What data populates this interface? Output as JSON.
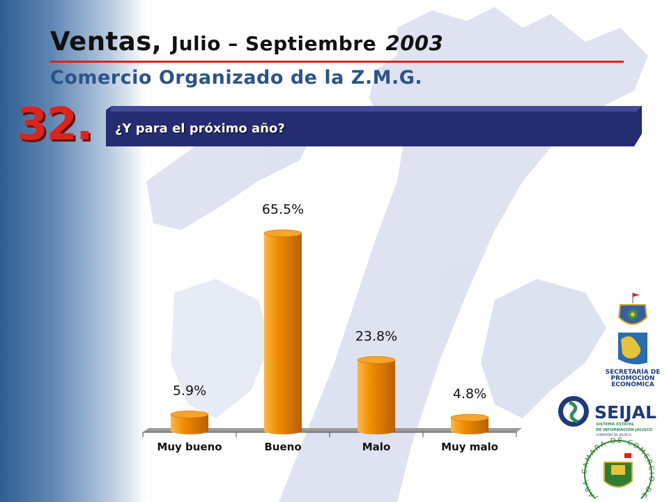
{
  "header": {
    "title_main": "Ventas,",
    "title_mid": "Julio – Septiembre",
    "title_year": "2003",
    "subtitle": "Comercio Organizado de la Z.M.G."
  },
  "question": {
    "number": "32.",
    "text": "¿Y para el próximo año?"
  },
  "logos": {
    "secretaria_line1": "SECRETARÍA DE",
    "secretaria_line2": "PROMOCIÓN",
    "secretaria_line3": "ECONÓMICA",
    "seijal_name": "SEIJAL",
    "seijal_line1": "SISTEMA ESTATAL",
    "seijal_line2": "DE INFORMACIÓN JALISCO",
    "seijal_line3": "GOBIERNO DE JALISCO",
    "camara_text": "CAMARA DE COMERCIO DE GUADALAJARA"
  },
  "colors": {
    "title_rule": "#d7261e",
    "subtitle": "#2b5489",
    "question_bar": "#262c72",
    "bar_fill": "#f08c00",
    "bar_dark": "#b85f00",
    "bar_light": "#f9b84a"
  },
  "chart_data": {
    "type": "bar",
    "categories": [
      "Muy bueno",
      "Bueno",
      "Malo",
      "Muy malo"
    ],
    "values": [
      5.9,
      65.5,
      23.8,
      4.8
    ],
    "data_labels": [
      "5.9%",
      "65.5%",
      "23.8%",
      "4.8%"
    ],
    "ylim": [
      0,
      70
    ],
    "grid": false,
    "legend": "none"
  }
}
